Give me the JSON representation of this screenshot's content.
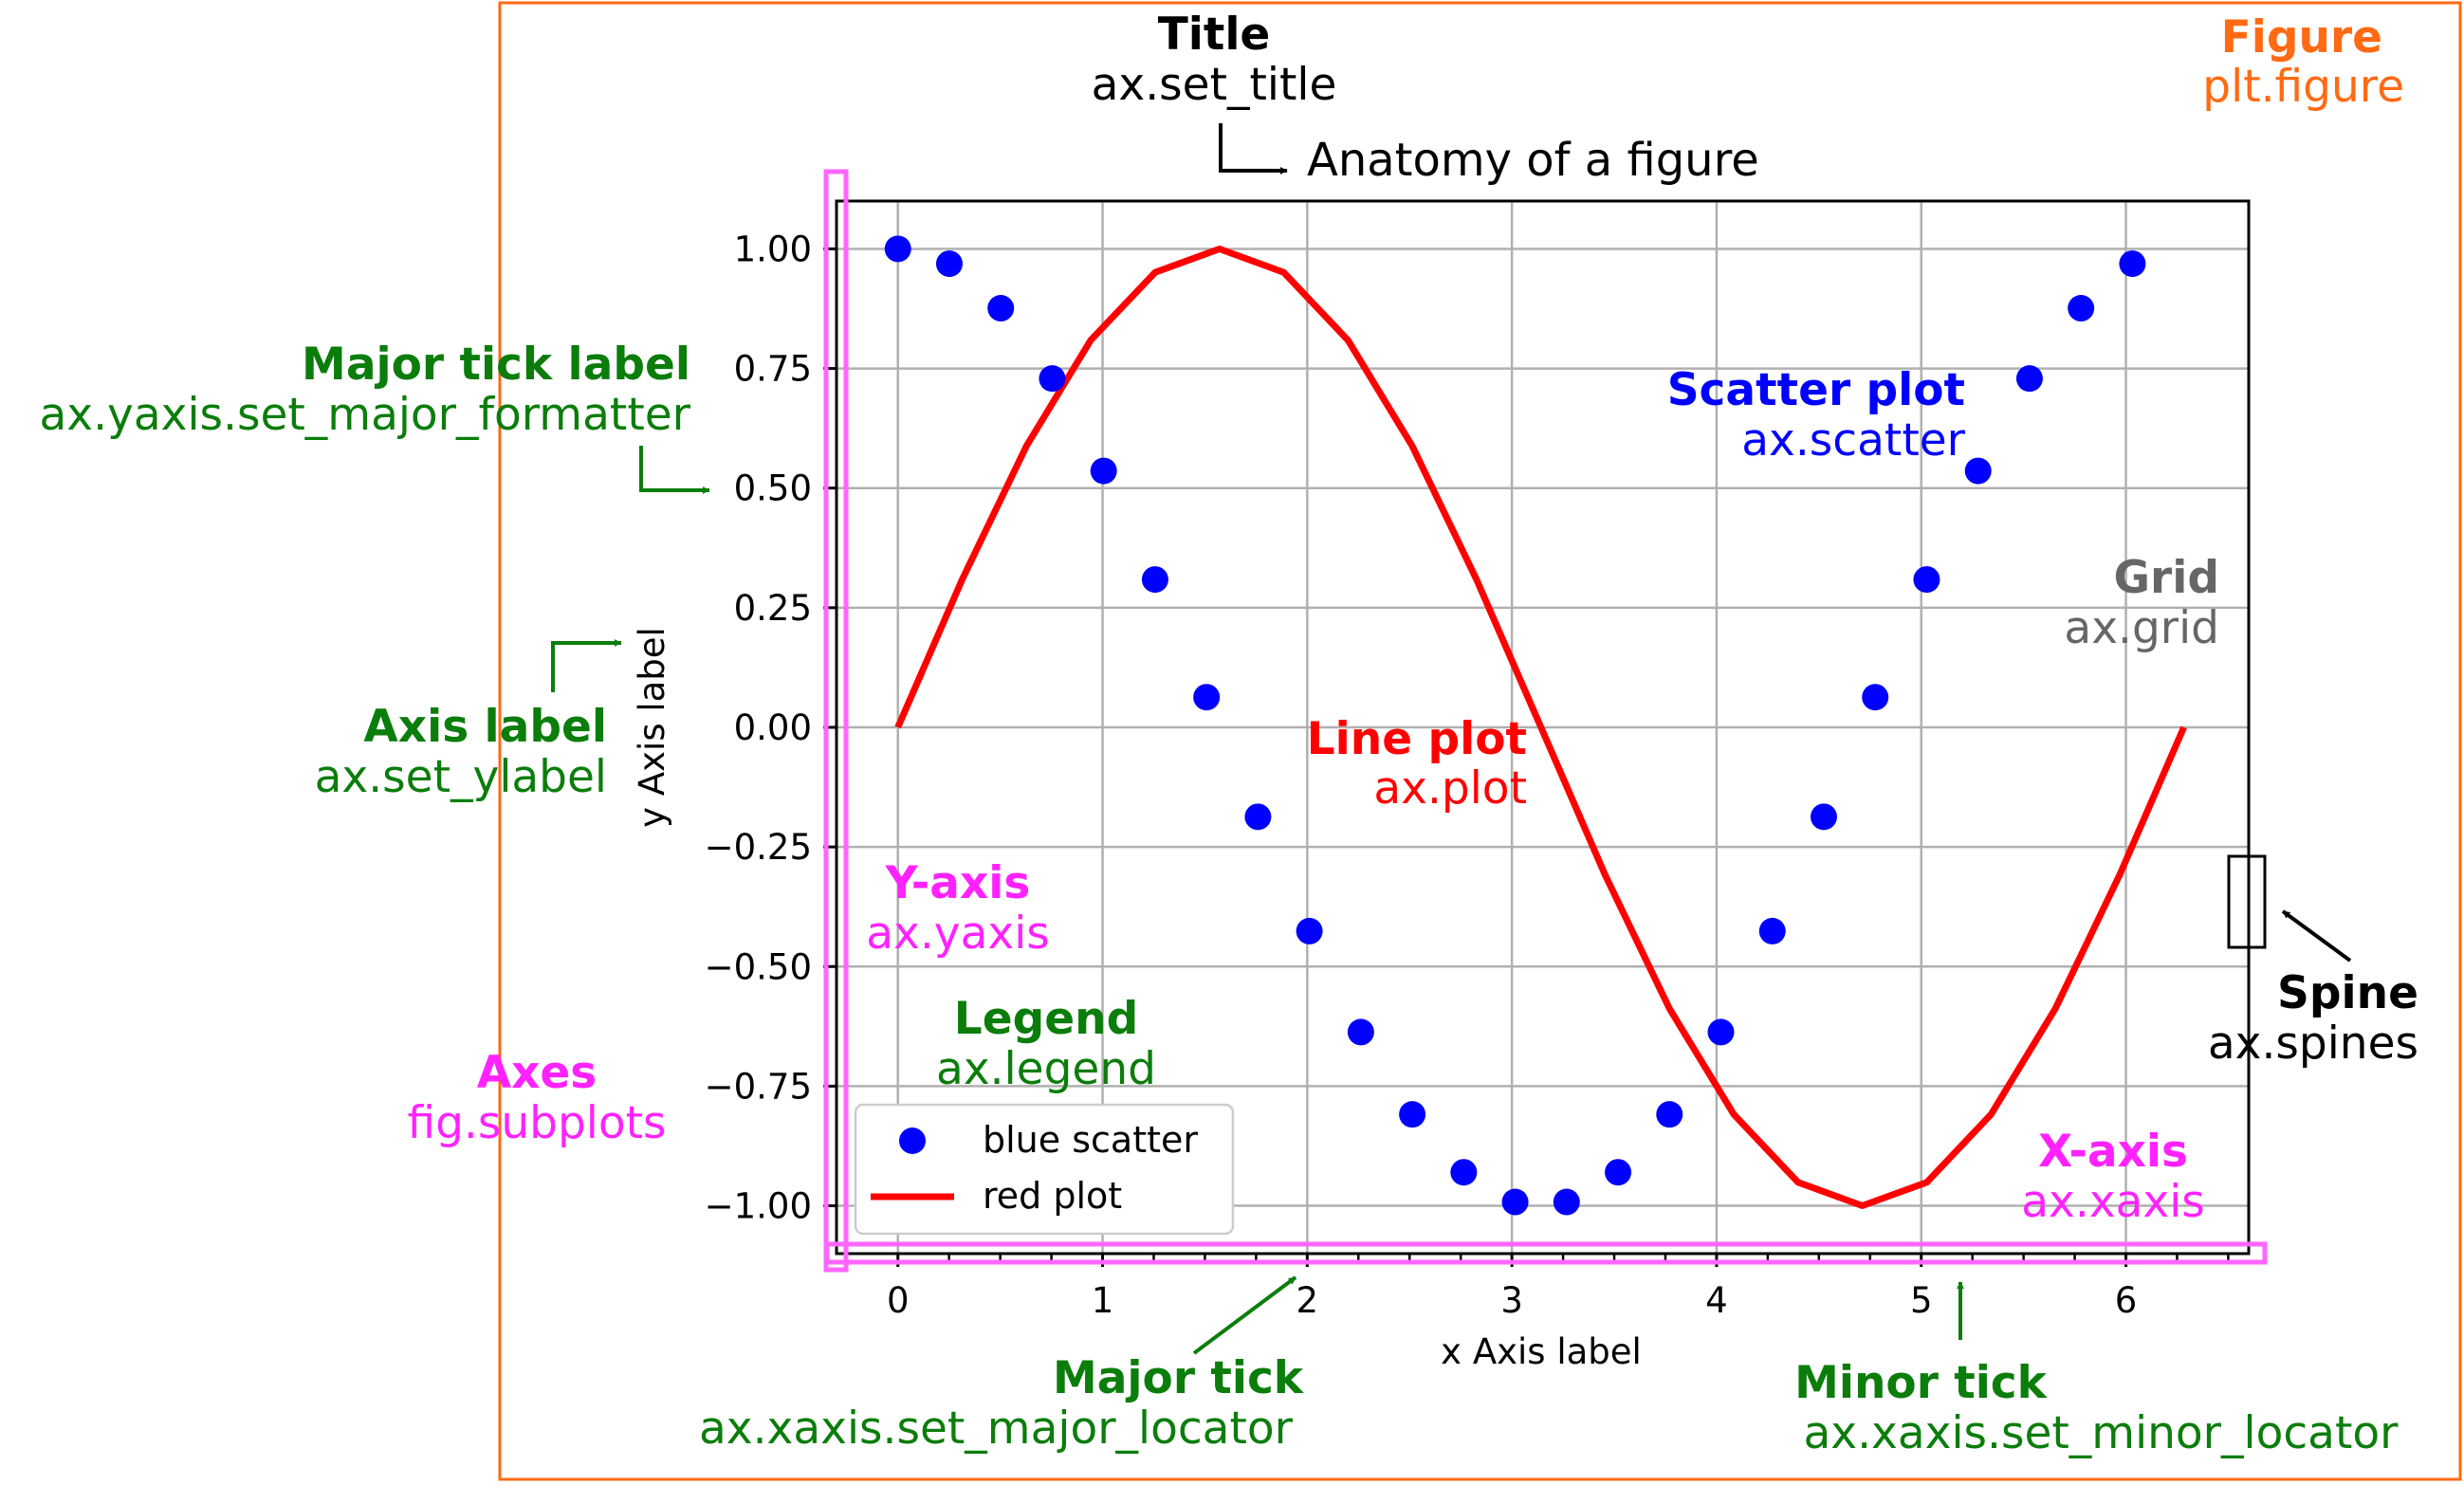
{
  "colors": {
    "figure": "#ff6a13",
    "annot_green": "#0b7d0b",
    "axes_magenta": "#ff22ff",
    "scatter": "#0000ff",
    "line": "#ff0000",
    "grid": "#b0b0b0",
    "grid_text": "#666666"
  },
  "chart_data": {
    "type": "line",
    "title": "Anatomy of a figure",
    "xlabel": "x Axis label",
    "ylabel": "y Axis label",
    "xlim": [
      -0.3,
      6.6
    ],
    "ylim": [
      -1.1,
      1.1
    ],
    "grid": true,
    "legend_position": "lower-left",
    "x_ticks": [
      0,
      1,
      2,
      3,
      4,
      5,
      6
    ],
    "x_tick_labels": [
      "0",
      "1",
      "2",
      "3",
      "4",
      "5",
      "6"
    ],
    "x_minor_step": 0.25,
    "y_ticks": [
      1.0,
      0.75,
      0.5,
      0.25,
      0.0,
      -0.25,
      -0.5,
      -0.75,
      -1.0
    ],
    "y_tick_labels": [
      "1.00",
      "0.75",
      "0.50",
      "0.25",
      "0.00",
      "−0.25",
      "−0.50",
      "−0.75",
      "−1.00"
    ],
    "series": [
      {
        "name": "blue scatter",
        "kind": "scatter",
        "x": [
          0.0,
          0.2513,
          0.5027,
          0.754,
          1.0053,
          1.2566,
          1.508,
          1.7593,
          2.0106,
          2.262,
          2.5133,
          2.7646,
          3.0159,
          3.2673,
          3.5186,
          3.7699,
          4.0212,
          4.2726,
          4.5239,
          4.7752,
          5.0265,
          5.2779,
          5.5292,
          5.7805,
          6.0319
        ],
        "y": [
          1.0,
          0.969,
          0.876,
          0.729,
          0.536,
          0.309,
          0.063,
          -0.187,
          -0.426,
          -0.637,
          -0.809,
          -0.93,
          -0.992,
          -0.992,
          -0.93,
          -0.809,
          -0.637,
          -0.426,
          -0.187,
          0.063,
          0.309,
          0.536,
          0.729,
          0.876,
          0.969
        ]
      },
      {
        "name": "red plot",
        "kind": "line",
        "x": [
          0.0,
          0.314,
          0.628,
          0.942,
          1.257,
          1.571,
          1.885,
          2.199,
          2.513,
          2.827,
          3.142,
          3.456,
          3.77,
          4.084,
          4.398,
          4.712,
          5.027,
          5.341,
          5.655,
          5.969,
          6.283
        ],
        "y": [
          0.0,
          0.309,
          0.588,
          0.809,
          0.951,
          1.0,
          0.951,
          0.809,
          0.588,
          0.309,
          0.0,
          -0.309,
          -0.588,
          -0.809,
          -0.951,
          -1.0,
          -0.951,
          -0.809,
          -0.588,
          -0.309,
          0.0
        ]
      }
    ]
  },
  "annotations": {
    "title": {
      "bold": "Title",
      "code": "ax.set_title"
    },
    "figure": {
      "bold": "Figure",
      "code": "plt.figure"
    },
    "major_tick_label": {
      "bold": "Major tick label",
      "code": "ax.yaxis.set_major_formatter"
    },
    "axis_label": {
      "bold": "Axis label",
      "code": "ax.set_ylabel"
    },
    "axes": {
      "bold": "Axes",
      "code": "fig.subplots"
    },
    "y_axis": {
      "bold": "Y-axis",
      "code": "ax.yaxis"
    },
    "legend": {
      "bold": "Legend",
      "code": "ax.legend"
    },
    "line_plot": {
      "bold": "Line plot",
      "code": "ax.plot"
    },
    "scatter_plot": {
      "bold": "Scatter plot",
      "code": "ax.scatter"
    },
    "grid": {
      "bold": "Grid",
      "code": "ax.grid"
    },
    "spine": {
      "bold": "Spine",
      "code": "ax.spines"
    },
    "x_axis": {
      "bold": "X-axis",
      "code": "ax.xaxis"
    },
    "major_tick": {
      "bold": "Major tick",
      "code": "ax.xaxis.set_major_locator"
    },
    "minor_tick": {
      "bold": "Minor tick",
      "code": "ax.xaxis.set_minor_locator"
    }
  }
}
